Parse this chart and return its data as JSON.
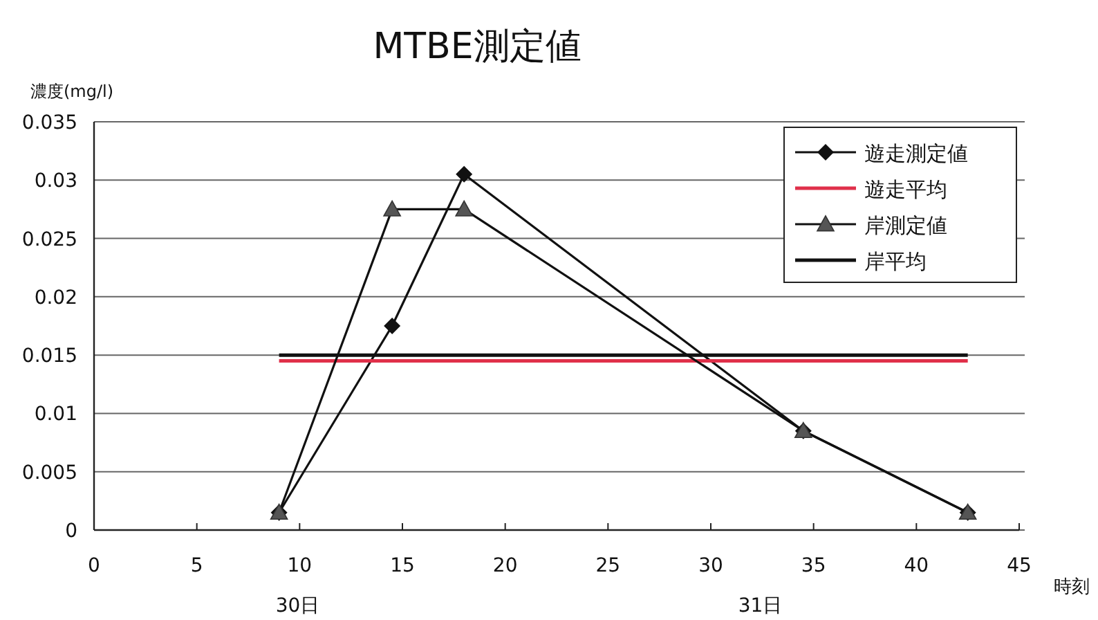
{
  "chart_data": {
    "type": "line",
    "title": "MTBE測定値",
    "ylabel": "濃度(mg/l)",
    "xlabel": "時刻",
    "xlim": [
      0,
      45
    ],
    "xticks": [
      0,
      5,
      10,
      15,
      20,
      25,
      30,
      35,
      40,
      45
    ],
    "ylim": [
      0,
      0.035
    ],
    "yticks": [
      0,
      0.005,
      0.01,
      0.015,
      0.02,
      0.025,
      0.03,
      0.035
    ],
    "grid": "y",
    "legend": "top right",
    "series": [
      {
        "name": "遊走測定値",
        "color": "#111111",
        "marker": "diamond",
        "x": [
          9,
          14.5,
          18,
          34.5,
          42.5
        ],
        "values": [
          0.0015,
          0.0175,
          0.0305,
          0.0085,
          0.0015
        ]
      },
      {
        "name": "遊走平均",
        "color": "#e0304a",
        "marker": "none",
        "x": [
          9,
          42.5
        ],
        "values": [
          0.0145,
          0.0145
        ]
      },
      {
        "name": "岸測定値",
        "color": "#555555",
        "marker": "triangle",
        "x": [
          9,
          14.5,
          18,
          34.5,
          42.5
        ],
        "values": [
          0.0015,
          0.0275,
          0.0275,
          0.0085,
          0.0015
        ]
      },
      {
        "name": "岸平均",
        "color": "#111111",
        "marker": "none",
        "x": [
          9,
          42.5
        ],
        "values": [
          0.015,
          0.015
        ]
      }
    ],
    "annotations": [
      "30日",
      "31日"
    ]
  }
}
